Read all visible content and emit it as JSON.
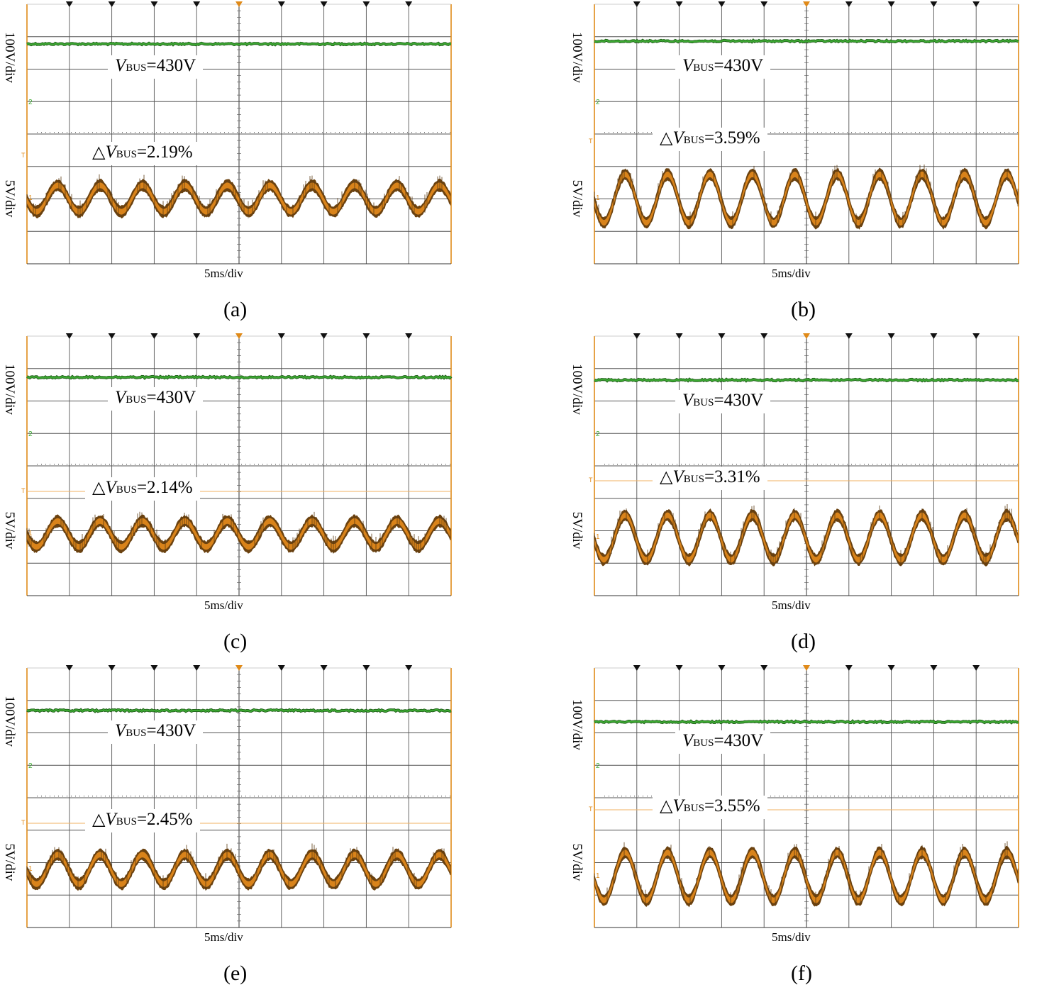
{
  "colors": {
    "ch1_trace": "#d9831a",
    "ch1_dark": "#6b4210",
    "ch2_trace": "#3ca832",
    "ch2_dark": "#1d5c17",
    "grid": "#555555",
    "border": "#e08a18"
  },
  "panels": [
    {
      "caption": "(a)",
      "ylabel_top": "100V/div",
      "ylabel_bottom": "5V/div",
      "xlabel": "5ms/div",
      "vbus": {
        "V": "V",
        "sub": "BUS",
        "text": "=430V"
      },
      "ripple": {
        "tri": "△",
        "V": "V",
        "sub": "BUS",
        "text": "=2.19%"
      },
      "ch2_marker": "2",
      "ch1_marker": "1",
      "trigger_marker": "T",
      "chart_data": {
        "type": "line",
        "series": [
          {
            "name": "V_BUS",
            "kind": "dc",
            "value_V": 430
          },
          {
            "name": "ΔV_BUS",
            "kind": "sine",
            "ripple_percent": 2.19,
            "cycles_per_screen": 10
          }
        ],
        "x_scale": "5ms/div",
        "y_scales": [
          "100V/div",
          "5V/div"
        ],
        "grid": true
      }
    },
    {
      "caption": "(b)",
      "ylabel_top": "100V/div",
      "ylabel_bottom": "5V/div",
      "xlabel": "5ms/div",
      "vbus": {
        "V": "V",
        "sub": "BUS",
        "text": "=430V"
      },
      "ripple": {
        "tri": "△",
        "V": "V",
        "sub": "BUS",
        "text": "=3.59%"
      },
      "ch2_marker": "2",
      "ch1_marker": "1",
      "trigger_marker": "T",
      "chart_data": {
        "type": "line",
        "series": [
          {
            "name": "V_BUS",
            "kind": "dc",
            "value_V": 430
          },
          {
            "name": "ΔV_BUS",
            "kind": "sine",
            "ripple_percent": 3.59,
            "cycles_per_screen": 10
          }
        ],
        "x_scale": "5ms/div",
        "y_scales": [
          "100V/div",
          "5V/div"
        ],
        "grid": true
      }
    },
    {
      "caption": "(c)",
      "ylabel_top": "100V/div",
      "ylabel_bottom": "5V/div",
      "xlabel": "5ms/div",
      "vbus": {
        "V": "V",
        "sub": "BUS",
        "text": "=430V"
      },
      "ripple": {
        "tri": "△",
        "V": "V",
        "sub": "BUS",
        "text": "=2.14%"
      },
      "ch2_marker": "2",
      "ch1_marker": "1",
      "trigger_marker": "T",
      "chart_data": {
        "type": "line",
        "series": [
          {
            "name": "V_BUS",
            "kind": "dc",
            "value_V": 430
          },
          {
            "name": "ΔV_BUS",
            "kind": "sine",
            "ripple_percent": 2.14,
            "cycles_per_screen": 10
          }
        ],
        "x_scale": "5ms/div",
        "y_scales": [
          "100V/div",
          "5V/div"
        ],
        "grid": true
      }
    },
    {
      "caption": "(d)",
      "ylabel_top": "100V/div",
      "ylabel_bottom": "5V/div",
      "xlabel": "5ms/div",
      "vbus": {
        "V": "V",
        "sub": "BUS",
        "text": "=430V"
      },
      "ripple": {
        "tri": "△",
        "V": "V",
        "sub": "BUS",
        "text": "=3.31%"
      },
      "ch2_marker": "2",
      "ch1_marker": "1",
      "trigger_marker": "T",
      "chart_data": {
        "type": "line",
        "series": [
          {
            "name": "V_BUS",
            "kind": "dc",
            "value_V": 430
          },
          {
            "name": "ΔV_BUS",
            "kind": "sine",
            "ripple_percent": 3.31,
            "cycles_per_screen": 10
          }
        ],
        "x_scale": "5ms/div",
        "y_scales": [
          "100V/div",
          "5V/div"
        ],
        "grid": true
      }
    },
    {
      "caption": "(e)",
      "ylabel_top": "100V/div",
      "ylabel_bottom": "5V/div",
      "xlabel": "5ms/div",
      "vbus": {
        "V": "V",
        "sub": "BUS",
        "text": "=430V"
      },
      "ripple": {
        "tri": "△",
        "V": "V",
        "sub": "BUS",
        "text": "=2.45%"
      },
      "ch2_marker": "2",
      "ch1_marker": "1",
      "trigger_marker": "T",
      "chart_data": {
        "type": "line",
        "series": [
          {
            "name": "V_BUS",
            "kind": "dc",
            "value_V": 430
          },
          {
            "name": "ΔV_BUS",
            "kind": "sine",
            "ripple_percent": 2.45,
            "cycles_per_screen": 10
          }
        ],
        "x_scale": "5ms/div",
        "y_scales": [
          "100V/div",
          "5V/div"
        ],
        "grid": true
      }
    },
    {
      "caption": "(f)",
      "ylabel_top": "100V/div",
      "ylabel_bottom": "5V/div",
      "xlabel": "5ms/div",
      "vbus": {
        "V": "V",
        "sub": "BUS",
        "text": "=430V"
      },
      "ripple": {
        "tri": "△",
        "V": "V",
        "sub": "BUS",
        "text": "=3.55%"
      },
      "ch2_marker": "2",
      "ch1_marker": "1",
      "trigger_marker": "T",
      "chart_data": {
        "type": "line",
        "series": [
          {
            "name": "V_BUS",
            "kind": "dc",
            "value_V": 430
          },
          {
            "name": "ΔV_BUS",
            "kind": "sine",
            "ripple_percent": 3.55,
            "cycles_per_screen": 10
          }
        ],
        "x_scale": "5ms/div",
        "y_scales": [
          "100V/div",
          "5V/div"
        ],
        "grid": true
      }
    }
  ]
}
